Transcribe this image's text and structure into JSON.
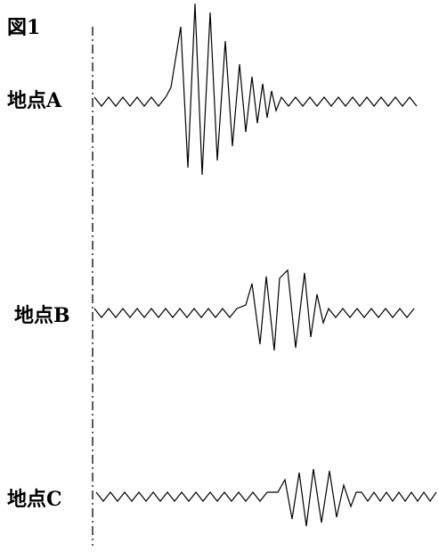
{
  "figure": {
    "label": "図1",
    "stations": [
      {
        "label": "地点A"
      },
      {
        "label": "地点B"
      },
      {
        "label": "地点C"
      }
    ]
  }
}
